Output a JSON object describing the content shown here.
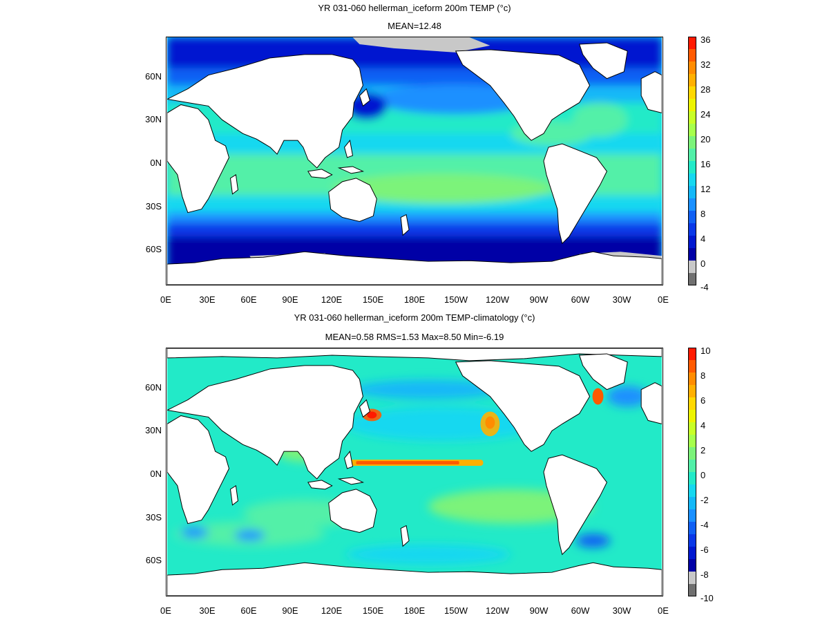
{
  "panels": [
    {
      "title": "YR 031-060 hellerman_iceform 200m TEMP (°c)",
      "stats": "MEAN=12.48",
      "colorbar_labels": [
        "36",
        "32",
        "28",
        "24",
        "20",
        "16",
        "12",
        "8",
        "4",
        "0",
        "-4"
      ],
      "colorbar_colors": [
        "#ff1a00",
        "#ff5a00",
        "#ff8c00",
        "#ffb000",
        "#ffd800",
        "#eef400",
        "#c8ff26",
        "#a6ff4c",
        "#7cf37a",
        "#52f0a8",
        "#22eac8",
        "#16d8f0",
        "#14b8f8",
        "#1a90ff",
        "#1060f4",
        "#0a38e8",
        "#0018d0",
        "#0000a6",
        "#c8c8c8",
        "#707070"
      ],
      "x_tick_labels": [
        "0E",
        "30E",
        "60E",
        "90E",
        "120E",
        "150E",
        "180E",
        "150W",
        "120W",
        "90W",
        "60W",
        "30W",
        "0E"
      ],
      "y_tick_labels": [
        "60N",
        "30N",
        "0N",
        "30S",
        "60S"
      ]
    },
    {
      "title": "YR 031-060 hellerman_iceform 200m TEMP-climatology (°c)",
      "stats": "MEAN=0.58   RMS=1.53   Max=8.50   Min=-6.19",
      "colorbar_labels": [
        "10",
        "8",
        "6",
        "4",
        "2",
        "0",
        "-2",
        "-4",
        "-6",
        "-8",
        "-10"
      ],
      "colorbar_colors": [
        "#ff1a00",
        "#ff5a00",
        "#ff8c00",
        "#ffb000",
        "#ffd800",
        "#eef400",
        "#c8ff26",
        "#a6ff4c",
        "#7cf37a",
        "#52f0a8",
        "#22eac8",
        "#16d8f0",
        "#14b8f8",
        "#1a90ff",
        "#1060f4",
        "#0a38e8",
        "#0018d0",
        "#0000a6",
        "#c8c8c8",
        "#707070"
      ],
      "x_tick_labels": [
        "0E",
        "30E",
        "60E",
        "90E",
        "120E",
        "150E",
        "180E",
        "150W",
        "120W",
        "90W",
        "60W",
        "30W",
        "0E"
      ],
      "y_tick_labels": [
        "60N",
        "30N",
        "0N",
        "30S",
        "60S"
      ]
    }
  ]
}
